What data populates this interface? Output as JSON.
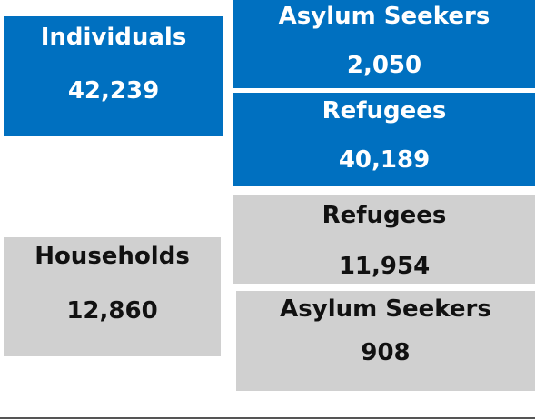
{
  "individuals": {
    "label": "Individuals",
    "value": "42,239",
    "breakdown": [
      {
        "label": "Asylum Seekers",
        "value": "2,050"
      },
      {
        "label": "Refugees",
        "value": "40,189"
      }
    ]
  },
  "households": {
    "label": "Households",
    "value": "12,860",
    "breakdown": [
      {
        "label": "Refugees",
        "value": "11,954"
      },
      {
        "label": "Asylum Seekers",
        "value": "908"
      }
    ]
  }
}
